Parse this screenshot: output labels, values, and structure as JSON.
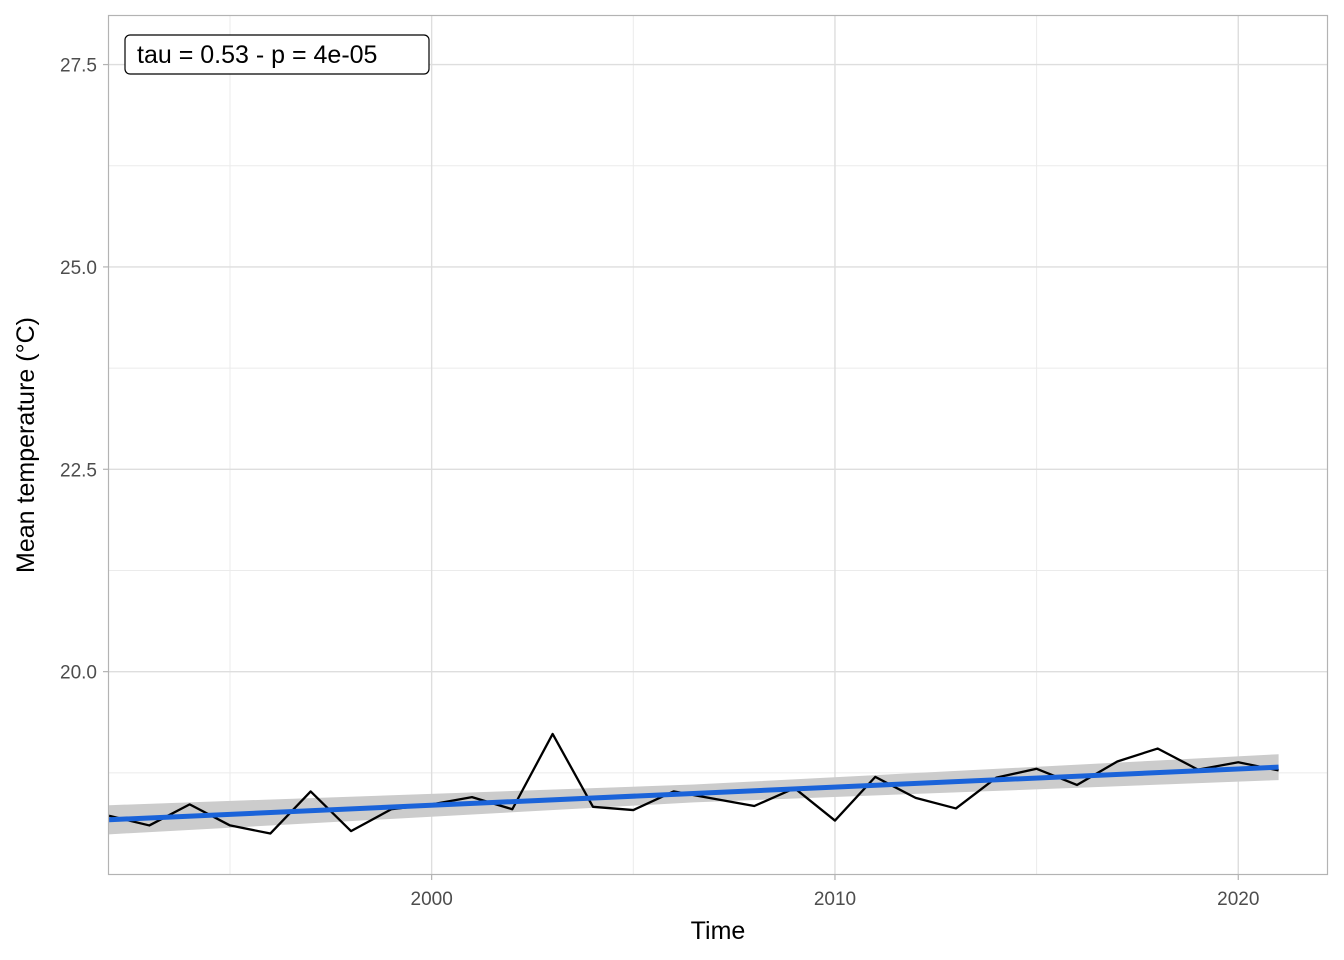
{
  "chart_data": {
    "type": "line",
    "title": "",
    "xlabel": "Time",
    "ylabel": "Mean temperature (°C)",
    "annotation": "tau = 0.53 - p = 4e-05",
    "xlim": [
      1992,
      2022.2
    ],
    "ylim": [
      17.5,
      28.1
    ],
    "x_ticks": [
      2000,
      2010,
      2020
    ],
    "y_ticks": [
      20.0,
      22.5,
      25.0,
      27.5
    ],
    "y_tick_labels": [
      "20.0",
      "22.5",
      "25.0",
      "27.5"
    ],
    "grid": true,
    "series": [
      {
        "x": [
          1992,
          1993,
          1994,
          1995,
          1996,
          1997,
          1998,
          1999,
          2000,
          2001,
          2002,
          2003,
          2004,
          2005,
          2006,
          2007,
          2008,
          2009,
          2010,
          2011,
          2012,
          2013,
          2014,
          2015,
          2016,
          2017,
          2018,
          2019,
          2020,
          2021
        ],
        "y": [
          18.22,
          18.1,
          18.36,
          18.1,
          18.0,
          18.52,
          18.03,
          18.3,
          18.36,
          18.45,
          18.3,
          19.23,
          18.33,
          18.29,
          18.52,
          18.43,
          18.34,
          18.56,
          18.16,
          18.7,
          18.44,
          18.31,
          18.69,
          18.8,
          18.6,
          18.89,
          19.05,
          18.79,
          18.88,
          18.78
        ],
        "color": "#000000"
      }
    ],
    "trend": {
      "x": [
        1992,
        2021
      ],
      "y": [
        18.17,
        18.82
      ],
      "ci_halfwidth_start": 0.18,
      "ci_halfwidth_end": 0.16,
      "line_color": "#1a63d9",
      "band_color": "#cccccc"
    }
  }
}
